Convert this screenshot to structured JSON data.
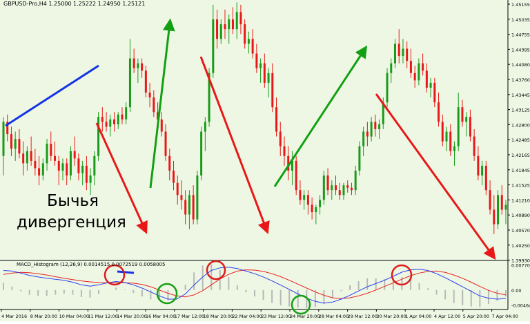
{
  "window": {
    "symbol_info": "GBPUSD-Pro,H4  1.25000 1.25222 1.24950 1.25121"
  },
  "annotation": {
    "line1": "Бычья",
    "line2": "дивергенция"
  },
  "macd": {
    "label": "MACD_Histogram (12,26,9) 0.0014515 0.0072519 0.0058005",
    "scale": [
      "0.007705",
      "0.00",
      "-0.004643"
    ]
  },
  "price_axis": [
    "1.45155",
    "1.45035",
    "1.44755",
    "1.44395",
    "1.44080",
    "1.43760",
    "1.43445",
    "1.43125",
    "1.42800",
    "1.42485",
    "1.42165",
    "1.41845",
    "1.41525",
    "1.41210",
    "1.40890",
    "1.40570",
    "1.40250",
    "1.39930"
  ],
  "time_axis": [
    "4 Mar 2016",
    "8 Mar 20:00",
    "10 Mar 04:00",
    "11 Mar 12:00",
    "14 Mar 20:00",
    "16 Mar 04:00",
    "17 Mar 12:00",
    "18 Mar 20:00",
    "22 Mar 04:00",
    "23 Mar 12:00",
    "24 Mar 20:00",
    "28 Mar 04:00",
    "29 Mar 12:00",
    "30 Mar 20:00",
    "1 Apr 04:00",
    "4 Apr 12:00",
    "5 Apr 20:00",
    "7 Apr 04:00"
  ],
  "colors": {
    "background": "#eef7e4",
    "bull": "#1a9a1a",
    "bear": "#e81818",
    "divergence_line": "#1433e6",
    "trend_up_arrow": "#12a012",
    "trend_down_arrow": "#e81818",
    "macd_main": "#2a3ff0",
    "macd_signal": "#e82020",
    "circle_red": "#dd1c1c",
    "circle_green": "#16a016",
    "histogram": "#b8b8b8"
  },
  "chart_data": {
    "type": "candlestick",
    "series_name": "GBPUSD H4",
    "ylim": [
      1.3993,
      1.45155
    ],
    "candles": [
      [
        1.42,
        1.428,
        1.416,
        1.427
      ],
      [
        1.427,
        1.4285,
        1.423,
        1.4245
      ],
      [
        1.4245,
        1.426,
        1.42,
        1.4215
      ],
      [
        1.4215,
        1.425,
        1.419,
        1.4235
      ],
      [
        1.4235,
        1.4255,
        1.4195,
        1.4205
      ],
      [
        1.4205,
        1.423,
        1.416,
        1.4185
      ],
      [
        1.4185,
        1.422,
        1.417,
        1.421
      ],
      [
        1.421,
        1.424,
        1.418,
        1.419
      ],
      [
        1.419,
        1.4215,
        1.416,
        1.4175
      ],
      [
        1.4175,
        1.42,
        1.414,
        1.416
      ],
      [
        1.416,
        1.4195,
        1.415,
        1.4185
      ],
      [
        1.4185,
        1.4235,
        1.417,
        1.4225
      ],
      [
        1.4225,
        1.425,
        1.419,
        1.42
      ],
      [
        1.42,
        1.423,
        1.418,
        1.419
      ],
      [
        1.419,
        1.42,
        1.414,
        1.417
      ],
      [
        1.417,
        1.4195,
        1.415,
        1.4185
      ],
      [
        1.4185,
        1.4195,
        1.414,
        1.416
      ],
      [
        1.416,
        1.422,
        1.415,
        1.421
      ],
      [
        1.421,
        1.424,
        1.418,
        1.4195
      ],
      [
        1.4195,
        1.4205,
        1.415,
        1.4165
      ],
      [
        1.4165,
        1.419,
        1.414,
        1.418
      ],
      [
        1.418,
        1.42,
        1.413,
        1.4145
      ],
      [
        1.4145,
        1.4175,
        1.412,
        1.416
      ],
      [
        1.416,
        1.421,
        1.414,
        1.42
      ],
      [
        1.42,
        1.429,
        1.419,
        1.428
      ],
      [
        1.428,
        1.43,
        1.425,
        1.427
      ],
      [
        1.427,
        1.429,
        1.425,
        1.426
      ],
      [
        1.426,
        1.4285,
        1.424,
        1.4275
      ],
      [
        1.4275,
        1.429,
        1.425,
        1.4265
      ],
      [
        1.4265,
        1.429,
        1.4255,
        1.4285
      ],
      [
        1.4285,
        1.43,
        1.4265,
        1.4275
      ],
      [
        1.4275,
        1.431,
        1.4265,
        1.43
      ],
      [
        1.43,
        1.444,
        1.429,
        1.44
      ],
      [
        1.44,
        1.442,
        1.437,
        1.438
      ],
      [
        1.438,
        1.44,
        1.435,
        1.439
      ],
      [
        1.439,
        1.44,
        1.436,
        1.4375
      ],
      [
        1.4375,
        1.4385,
        1.432,
        1.433
      ],
      [
        1.433,
        1.435,
        1.43,
        1.432
      ],
      [
        1.432,
        1.4335,
        1.428,
        1.429
      ],
      [
        1.429,
        1.431,
        1.426,
        1.4275
      ],
      [
        1.4275,
        1.429,
        1.424,
        1.425
      ],
      [
        1.425,
        1.4265,
        1.419,
        1.42
      ],
      [
        1.42,
        1.4215,
        1.415,
        1.417
      ],
      [
        1.417,
        1.419,
        1.413,
        1.4145
      ],
      [
        1.4145,
        1.416,
        1.41,
        1.412
      ],
      [
        1.412,
        1.415,
        1.409,
        1.411
      ],
      [
        1.411,
        1.413,
        1.406,
        1.408
      ],
      [
        1.408,
        1.413,
        1.405,
        1.412
      ],
      [
        1.412,
        1.414,
        1.406,
        1.407
      ],
      [
        1.407,
        1.417,
        1.406,
        1.416
      ],
      [
        1.416,
        1.426,
        1.415,
        1.425
      ],
      [
        1.425,
        1.428,
        1.421,
        1.427
      ],
      [
        1.427,
        1.438,
        1.426,
        1.437
      ],
      [
        1.437,
        1.451,
        1.436,
        1.448
      ],
      [
        1.448,
        1.45,
        1.442,
        1.444
      ],
      [
        1.444,
        1.448,
        1.443,
        1.447
      ],
      [
        1.447,
        1.45,
        1.444,
        1.446
      ],
      [
        1.446,
        1.449,
        1.443,
        1.448
      ],
      [
        1.448,
        1.4505,
        1.445,
        1.446
      ],
      [
        1.446,
        1.4515,
        1.444,
        1.4495
      ],
      [
        1.4495,
        1.451,
        1.445,
        1.447
      ],
      [
        1.447,
        1.448,
        1.442,
        1.443
      ],
      [
        1.443,
        1.4455,
        1.441,
        1.444
      ],
      [
        1.444,
        1.446,
        1.44,
        1.441
      ],
      [
        1.441,
        1.443,
        1.437,
        1.438
      ],
      [
        1.438,
        1.44,
        1.435,
        1.439
      ],
      [
        1.439,
        1.441,
        1.434,
        1.435
      ],
      [
        1.435,
        1.438,
        1.432,
        1.437
      ],
      [
        1.437,
        1.439,
        1.429,
        1.43
      ],
      [
        1.43,
        1.432,
        1.424,
        1.425
      ],
      [
        1.425,
        1.427,
        1.42,
        1.422
      ],
      [
        1.422,
        1.424,
        1.418,
        1.42
      ],
      [
        1.42,
        1.422,
        1.415,
        1.417
      ],
      [
        1.417,
        1.421,
        1.414,
        1.419
      ],
      [
        1.419,
        1.42,
        1.412,
        1.413
      ],
      [
        1.413,
        1.415,
        1.41,
        1.411
      ],
      [
        1.411,
        1.413,
        1.409,
        1.412
      ],
      [
        1.412,
        1.413,
        1.408,
        1.41
      ],
      [
        1.41,
        1.4115,
        1.407,
        1.4085
      ],
      [
        1.4085,
        1.41,
        1.406,
        1.4095
      ],
      [
        1.4095,
        1.412,
        1.408,
        1.411
      ],
      [
        1.411,
        1.417,
        1.41,
        1.416
      ],
      [
        1.416,
        1.4175,
        1.412,
        1.413
      ],
      [
        1.413,
        1.415,
        1.411,
        1.414
      ],
      [
        1.414,
        1.416,
        1.412,
        1.413
      ],
      [
        1.413,
        1.4145,
        1.411,
        1.412
      ],
      [
        1.412,
        1.4145,
        1.411,
        1.414
      ],
      [
        1.414,
        1.415,
        1.4125,
        1.4135
      ],
      [
        1.4135,
        1.4145,
        1.412,
        1.413
      ],
      [
        1.413,
        1.418,
        1.412,
        1.417
      ],
      [
        1.417,
        1.423,
        1.416,
        1.422
      ],
      [
        1.422,
        1.426,
        1.42,
        1.425
      ],
      [
        1.425,
        1.427,
        1.422,
        1.424
      ],
      [
        1.424,
        1.428,
        1.423,
        1.427
      ],
      [
        1.427,
        1.4285,
        1.424,
        1.4255
      ],
      [
        1.4255,
        1.4275,
        1.4235,
        1.4265
      ],
      [
        1.4265,
        1.432,
        1.4255,
        1.431
      ],
      [
        1.431,
        1.438,
        1.43,
        1.437
      ],
      [
        1.437,
        1.44,
        1.435,
        1.439
      ],
      [
        1.439,
        1.444,
        1.438,
        1.443
      ],
      [
        1.443,
        1.446,
        1.439,
        1.4405
      ],
      [
        1.4405,
        1.444,
        1.439,
        1.442
      ],
      [
        1.442,
        1.4435,
        1.438,
        1.4395
      ],
      [
        1.4395,
        1.442,
        1.436,
        1.437
      ],
      [
        1.437,
        1.4385,
        1.434,
        1.4355
      ],
      [
        1.4355,
        1.44,
        1.4345,
        1.439
      ],
      [
        1.439,
        1.441,
        1.4365,
        1.4375
      ],
      [
        1.4375,
        1.439,
        1.433,
        1.434
      ],
      [
        1.434,
        1.436,
        1.432,
        1.435
      ],
      [
        1.435,
        1.436,
        1.43,
        1.431
      ],
      [
        1.431,
        1.433,
        1.426,
        1.427
      ],
      [
        1.427,
        1.4285,
        1.422,
        1.423
      ],
      [
        1.423,
        1.426,
        1.421,
        1.425
      ],
      [
        1.425,
        1.4265,
        1.42,
        1.421
      ],
      [
        1.421,
        1.423,
        1.418,
        1.422
      ],
      [
        1.422,
        1.433,
        1.421,
        1.43
      ],
      [
        1.43,
        1.4315,
        1.426,
        1.427
      ],
      [
        1.427,
        1.429,
        1.424,
        1.428
      ],
      [
        1.428,
        1.4295,
        1.423,
        1.424
      ],
      [
        1.424,
        1.4255,
        1.419,
        1.42
      ],
      [
        1.42,
        1.422,
        1.415,
        1.416
      ],
      [
        1.416,
        1.419,
        1.414,
        1.418
      ],
      [
        1.418,
        1.419,
        1.412,
        1.413
      ],
      [
        1.413,
        1.415,
        1.408,
        1.409
      ],
      [
        1.409,
        1.412,
        1.404,
        1.406
      ],
      [
        1.406,
        1.413,
        1.405,
        1.412
      ],
      [
        1.412,
        1.414,
        1.408,
        1.409
      ],
      [
        1.409,
        1.411,
        1.406,
        1.41
      ]
    ],
    "macd_main": [
      0.006,
      0.0058,
      0.0052,
      0.0045,
      0.004,
      0.0036,
      0.0033,
      0.003,
      0.0024,
      0.0016,
      0.0012,
      0.0016,
      0.0022,
      0.0026,
      0.0023,
      0.0016,
      0.0006,
      -0.0006,
      -0.0018,
      -0.0028,
      -0.0028,
      -0.0012,
      0.0015,
      0.004,
      0.006,
      0.0068,
      0.007,
      0.0066,
      0.0058,
      0.005,
      0.004,
      0.0028,
      0.0015,
      0.0002,
      -0.0012,
      -0.0025,
      -0.0035,
      -0.004,
      -0.0037,
      -0.0028,
      -0.0016,
      -0.0003,
      0.001,
      0.002,
      0.003,
      0.0042,
      0.0055,
      0.0062,
      0.0064,
      0.006,
      0.005,
      0.0038,
      0.0024,
      0.001,
      -0.0004,
      -0.0018,
      -0.0025,
      -0.0028,
      -0.0026
    ],
    "macd_signal": [
      0.0048,
      0.0052,
      0.0054,
      0.0053,
      0.005,
      0.0046,
      0.0041,
      0.0036,
      0.0032,
      0.0028,
      0.0025,
      0.0023,
      0.0022,
      0.0022,
      0.0022,
      0.0021,
      0.0017,
      0.001,
      0.0,
      -0.001,
      -0.0018,
      -0.0021,
      -0.0015,
      -0.0002,
      0.0016,
      0.0034,
      0.0048,
      0.0058,
      0.0062,
      0.0061,
      0.0057,
      0.005,
      0.0041,
      0.003,
      0.0018,
      0.0006,
      -0.0006,
      -0.0016,
      -0.0024,
      -0.0026,
      -0.0024,
      -0.0018,
      -0.001,
      0.0,
      0.0011,
      0.0022,
      0.0033,
      0.0044,
      0.0052,
      0.0057,
      0.0058,
      0.0054,
      0.0046,
      0.0036,
      0.0024,
      0.0011,
      -0.0001,
      -0.001,
      -0.0015
    ]
  }
}
